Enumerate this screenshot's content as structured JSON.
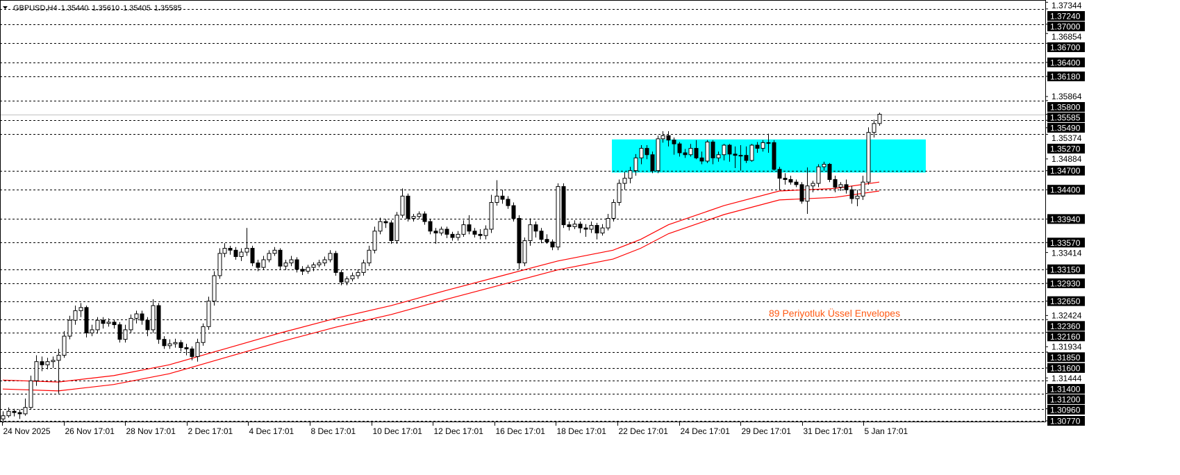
{
  "header": {
    "symbol": "GBPUSD,H4",
    "open": "1.35440",
    "high": "1.35610",
    "low": "1.35405",
    "close": "1.35585",
    "menu_icon": "triangle-down-icon"
  },
  "indicator_label": "89  Periyotluk Üssel Envelopes",
  "colors": {
    "background": "#ffffff",
    "bull_body": "#ffffff",
    "bear_body": "#000000",
    "envelope": "#ff0000",
    "zone": "#00ffff",
    "indicator_text": "#ff5a14",
    "current_price_line": "#c0c0c0",
    "level_label_bg": "#000000"
  },
  "chart_data": {
    "type": "candlestick",
    "symbol": "GBPUSD",
    "timeframe": "H4",
    "ylim": [
      1.3077,
      1.3738
    ],
    "grid": false,
    "price_axis_ticks": [
      "1.37344",
      "1.36854",
      "1.35864",
      "1.35374",
      "1.34884",
      "1.33414",
      "1.32424",
      "1.31934",
      "1.31444"
    ],
    "levels": [
      "1.37240",
      "1.37000",
      "1.36700",
      "1.36400",
      "1.36180",
      "1.35800",
      "1.35490",
      "1.35270",
      "1.34700",
      "1.34400",
      "1.33940",
      "1.33570",
      "1.33150",
      "1.32930",
      "1.32650",
      "1.32360",
      "1.32160",
      "1.31850",
      "1.31600",
      "1.31400",
      "1.31200",
      "1.30960",
      "1.30770"
    ],
    "current_price": "1.35585",
    "time_labels": [
      "24 Nov 2025",
      "26 Nov 17:01",
      "28 Nov 17:01",
      "2 Dec 17:01",
      "4 Dec 17:01",
      "8 Dec 17:01",
      "10 Dec 17:01",
      "12 Dec 17:01",
      "16 Dec 17:01",
      "18 Dec 17:01",
      "22 Dec 17:01",
      "24 Dec 17:01",
      "29 Dec 17:01",
      "31 Dec 17:01",
      "5 Jan 17:01"
    ],
    "zone": {
      "price_top": 1.3519,
      "price_bottom": 1.3467
    },
    "envelope": {
      "period": 89,
      "upper": [
        [
          0,
          1.3141
        ],
        [
          10,
          1.3138
        ],
        [
          20,
          1.3148
        ],
        [
          30,
          1.3165
        ],
        [
          40,
          1.319
        ],
        [
          50,
          1.3215
        ],
        [
          60,
          1.3238
        ],
        [
          70,
          1.3258
        ],
        [
          80,
          1.3282
        ],
        [
          90,
          1.3305
        ],
        [
          100,
          1.3328
        ],
        [
          110,
          1.3345
        ],
        [
          115,
          1.3362
        ],
        [
          120,
          1.3385
        ],
        [
          130,
          1.3415
        ],
        [
          140,
          1.3438
        ],
        [
          150,
          1.3442
        ],
        [
          158,
          1.3452
        ]
      ],
      "lower": [
        [
          0,
          1.3127
        ],
        [
          10,
          1.3124
        ],
        [
          20,
          1.3134
        ],
        [
          30,
          1.3151
        ],
        [
          40,
          1.3176
        ],
        [
          50,
          1.3201
        ],
        [
          60,
          1.3224
        ],
        [
          70,
          1.3244
        ],
        [
          80,
          1.3268
        ],
        [
          90,
          1.3291
        ],
        [
          100,
          1.3314
        ],
        [
          110,
          1.3331
        ],
        [
          115,
          1.3348
        ],
        [
          120,
          1.3371
        ],
        [
          130,
          1.3401
        ],
        [
          140,
          1.3424
        ],
        [
          150,
          1.3428
        ],
        [
          158,
          1.3438
        ]
      ]
    },
    "ohlc": [
      [
        1.308,
        1.3092,
        1.3074,
        1.3085
      ],
      [
        1.3085,
        1.3098,
        1.3082,
        1.3092
      ],
      [
        1.3092,
        1.3096,
        1.3084,
        1.309
      ],
      [
        1.309,
        1.3095,
        1.308,
        1.3088
      ],
      [
        1.3088,
        1.3112,
        1.3085,
        1.3098
      ],
      [
        1.3098,
        1.3148,
        1.3095,
        1.314
      ],
      [
        1.314,
        1.318,
        1.3132,
        1.317
      ],
      [
        1.317,
        1.3178,
        1.3155,
        1.3165
      ],
      [
        1.3165,
        1.3176,
        1.3158,
        1.317
      ],
      [
        1.317,
        1.3178,
        1.316,
        1.3172
      ],
      [
        1.3172,
        1.319,
        1.312,
        1.318
      ],
      [
        1.318,
        1.3218,
        1.3176,
        1.321
      ],
      [
        1.321,
        1.3242,
        1.3205,
        1.3235
      ],
      [
        1.3235,
        1.3258,
        1.3228,
        1.325
      ],
      [
        1.325,
        1.3262,
        1.324,
        1.3255
      ],
      [
        1.3255,
        1.3258,
        1.3208,
        1.3215
      ],
      [
        1.3215,
        1.3228,
        1.321,
        1.322
      ],
      [
        1.322,
        1.324,
        1.3214,
        1.3235
      ],
      [
        1.3235,
        1.324,
        1.3222,
        1.323
      ],
      [
        1.323,
        1.3238,
        1.3225,
        1.3232
      ],
      [
        1.3232,
        1.3236,
        1.3222,
        1.3228
      ],
      [
        1.3228,
        1.3232,
        1.32,
        1.3205
      ],
      [
        1.3205,
        1.3228,
        1.32,
        1.322
      ],
      [
        1.322,
        1.3244,
        1.3215,
        1.3238
      ],
      [
        1.3238,
        1.325,
        1.323,
        1.3245
      ],
      [
        1.3245,
        1.325,
        1.3228,
        1.3235
      ],
      [
        1.3235,
        1.324,
        1.321,
        1.322
      ],
      [
        1.322,
        1.3268,
        1.3215,
        1.3258
      ],
      [
        1.3258,
        1.3262,
        1.3198,
        1.3205
      ],
      [
        1.3205,
        1.321,
        1.319,
        1.3195
      ],
      [
        1.3195,
        1.3205,
        1.319,
        1.3198
      ],
      [
        1.3198,
        1.3206,
        1.3192,
        1.32
      ],
      [
        1.32,
        1.3204,
        1.3186,
        1.3192
      ],
      [
        1.3192,
        1.3198,
        1.318,
        1.319
      ],
      [
        1.319,
        1.3194,
        1.3172,
        1.3178
      ],
      [
        1.3178,
        1.3206,
        1.317,
        1.32
      ],
      [
        1.32,
        1.323,
        1.3195,
        1.3225
      ],
      [
        1.3225,
        1.3272,
        1.322,
        1.3265
      ],
      [
        1.3265,
        1.3312,
        1.3258,
        1.3305
      ],
      [
        1.3305,
        1.3348,
        1.33,
        1.334
      ],
      [
        1.334,
        1.3356,
        1.3334,
        1.3348
      ],
      [
        1.3348,
        1.3352,
        1.3338,
        1.3345
      ],
      [
        1.3345,
        1.335,
        1.333,
        1.3335
      ],
      [
        1.3335,
        1.3348,
        1.3328,
        1.3342
      ],
      [
        1.3342,
        1.338,
        1.3336,
        1.3348
      ],
      [
        1.3348,
        1.3352,
        1.332,
        1.3325
      ],
      [
        1.3325,
        1.333,
        1.3312,
        1.3318
      ],
      [
        1.3318,
        1.3336,
        1.3314,
        1.333
      ],
      [
        1.333,
        1.3345,
        1.3326,
        1.334
      ],
      [
        1.334,
        1.335,
        1.3336,
        1.3345
      ],
      [
        1.3345,
        1.3348,
        1.3315,
        1.332
      ],
      [
        1.332,
        1.333,
        1.3314,
        1.3325
      ],
      [
        1.3325,
        1.3336,
        1.332,
        1.333
      ],
      [
        1.333,
        1.3334,
        1.331,
        1.3315
      ],
      [
        1.3315,
        1.332,
        1.3306,
        1.3312
      ],
      [
        1.3312,
        1.3322,
        1.3308,
        1.3318
      ],
      [
        1.3318,
        1.3326,
        1.3312,
        1.3322
      ],
      [
        1.3322,
        1.333,
        1.3318,
        1.3325
      ],
      [
        1.3325,
        1.3335,
        1.332,
        1.333
      ],
      [
        1.333,
        1.3345,
        1.3326,
        1.334
      ],
      [
        1.334,
        1.3344,
        1.3305,
        1.331
      ],
      [
        1.331,
        1.3314,
        1.329,
        1.3295
      ],
      [
        1.3295,
        1.3304,
        1.329,
        1.33
      ],
      [
        1.33,
        1.331,
        1.3296,
        1.3305
      ],
      [
        1.3305,
        1.3315,
        1.33,
        1.331
      ],
      [
        1.331,
        1.333,
        1.3305,
        1.3325
      ],
      [
        1.3325,
        1.3352,
        1.332,
        1.3345
      ],
      [
        1.3345,
        1.3382,
        1.334,
        1.3375
      ],
      [
        1.3375,
        1.3396,
        1.337,
        1.339
      ],
      [
        1.339,
        1.3394,
        1.338,
        1.3388
      ],
      [
        1.3388,
        1.3392,
        1.3355,
        1.336
      ],
      [
        1.336,
        1.3405,
        1.3355,
        1.34
      ],
      [
        1.34,
        1.3442,
        1.3396,
        1.343
      ],
      [
        1.343,
        1.3434,
        1.339,
        1.3395
      ],
      [
        1.3395,
        1.3402,
        1.339,
        1.3398
      ],
      [
        1.3398,
        1.3406,
        1.3394,
        1.3402
      ],
      [
        1.3402,
        1.3406,
        1.3385,
        1.339
      ],
      [
        1.339,
        1.3394,
        1.337,
        1.3375
      ],
      [
        1.3375,
        1.338,
        1.3355,
        1.3372
      ],
      [
        1.3372,
        1.3382,
        1.3368,
        1.3378
      ],
      [
        1.3378,
        1.3382,
        1.3364,
        1.337
      ],
      [
        1.337,
        1.3374,
        1.336,
        1.3365
      ],
      [
        1.3365,
        1.3375,
        1.336,
        1.337
      ],
      [
        1.337,
        1.3392,
        1.3366,
        1.3385
      ],
      [
        1.3385,
        1.34,
        1.337,
        1.3375
      ],
      [
        1.3375,
        1.338,
        1.3365,
        1.337
      ],
      [
        1.337,
        1.3378,
        1.3362,
        1.3368
      ],
      [
        1.3368,
        1.3384,
        1.3362,
        1.3378
      ],
      [
        1.3378,
        1.3432,
        1.3372,
        1.342
      ],
      [
        1.342,
        1.3455,
        1.3415,
        1.343
      ],
      [
        1.343,
        1.344,
        1.3418,
        1.3425
      ],
      [
        1.3425,
        1.343,
        1.341,
        1.3415
      ],
      [
        1.3415,
        1.342,
        1.339,
        1.3395
      ],
      [
        1.3395,
        1.34,
        1.3315,
        1.3325
      ],
      [
        1.3325,
        1.3365,
        1.332,
        1.336
      ],
      [
        1.336,
        1.3395,
        1.3352,
        1.3385
      ],
      [
        1.3385,
        1.339,
        1.3365,
        1.3375
      ],
      [
        1.3375,
        1.338,
        1.3356,
        1.3362
      ],
      [
        1.3362,
        1.337,
        1.3355,
        1.3358
      ],
      [
        1.3358,
        1.3362,
        1.3345,
        1.335
      ],
      [
        1.335,
        1.345,
        1.3345,
        1.3445
      ],
      [
        1.3445,
        1.345,
        1.338,
        1.3385
      ],
      [
        1.3385,
        1.339,
        1.3376,
        1.3382
      ],
      [
        1.3382,
        1.3392,
        1.3378,
        1.3386
      ],
      [
        1.3386,
        1.339,
        1.3372,
        1.338
      ],
      [
        1.338,
        1.3386,
        1.3366,
        1.3378
      ],
      [
        1.3378,
        1.339,
        1.3372,
        1.3384
      ],
      [
        1.3384,
        1.3388,
        1.3362,
        1.3372
      ],
      [
        1.3372,
        1.3386,
        1.3368,
        1.338
      ],
      [
        1.338,
        1.3402,
        1.3376,
        1.3395
      ],
      [
        1.3395,
        1.3425,
        1.339,
        1.342
      ],
      [
        1.342,
        1.3456,
        1.3415,
        1.345
      ],
      [
        1.345,
        1.3468,
        1.344,
        1.3458
      ],
      [
        1.3458,
        1.3476,
        1.345,
        1.347
      ],
      [
        1.347,
        1.3496,
        1.3462,
        1.349
      ],
      [
        1.349,
        1.351,
        1.348,
        1.3505
      ],
      [
        1.3505,
        1.351,
        1.3488,
        1.3495
      ],
      [
        1.3495,
        1.35,
        1.3466,
        1.347
      ],
      [
        1.347,
        1.3525,
        1.3466,
        1.352
      ],
      [
        1.352,
        1.3532,
        1.3514,
        1.3525
      ],
      [
        1.3525,
        1.3532,
        1.3508,
        1.3518
      ],
      [
        1.3518,
        1.3522,
        1.3495,
        1.3512
      ],
      [
        1.3512,
        1.3515,
        1.3492,
        1.3498
      ],
      [
        1.3498,
        1.3504,
        1.349,
        1.3495
      ],
      [
        1.3495,
        1.3512,
        1.3492,
        1.3505
      ],
      [
        1.3505,
        1.3518,
        1.3488,
        1.349
      ],
      [
        1.349,
        1.35,
        1.348,
        1.3485
      ],
      [
        1.3485,
        1.3518,
        1.3482,
        1.3515
      ],
      [
        1.3515,
        1.3518,
        1.348,
        1.349
      ],
      [
        1.349,
        1.35,
        1.3484,
        1.3495
      ],
      [
        1.3495,
        1.3512,
        1.3486,
        1.351
      ],
      [
        1.351,
        1.3512,
        1.3484,
        1.3496
      ],
      [
        1.3496,
        1.3508,
        1.3474,
        1.3494
      ],
      [
        1.3494,
        1.351,
        1.347,
        1.3494
      ],
      [
        1.3494,
        1.3508,
        1.3482,
        1.3486
      ],
      [
        1.3486,
        1.3512,
        1.3484,
        1.351
      ],
      [
        1.351,
        1.3515,
        1.3498,
        1.3505
      ],
      [
        1.3505,
        1.3518,
        1.35,
        1.3514
      ],
      [
        1.3514,
        1.3528,
        1.3498,
        1.3514
      ],
      [
        1.3514,
        1.3518,
        1.347,
        1.3472
      ],
      [
        1.3472,
        1.3476,
        1.344,
        1.3458
      ],
      [
        1.3458,
        1.3466,
        1.3448,
        1.3456
      ],
      [
        1.3456,
        1.3462,
        1.3448,
        1.3452
      ],
      [
        1.3452,
        1.3456,
        1.3444,
        1.3448
      ],
      [
        1.3448,
        1.3452,
        1.3418,
        1.3422
      ],
      [
        1.3422,
        1.3475,
        1.3402,
        1.3446
      ],
      [
        1.3446,
        1.3454,
        1.3436,
        1.345
      ],
      [
        1.345,
        1.348,
        1.3444,
        1.3476
      ],
      [
        1.3476,
        1.3484,
        1.347,
        1.348
      ],
      [
        1.348,
        1.3482,
        1.3452,
        1.3456
      ],
      [
        1.3456,
        1.3462,
        1.3436,
        1.3444
      ],
      [
        1.3444,
        1.3452,
        1.3438,
        1.3448
      ],
      [
        1.3448,
        1.3456,
        1.3434,
        1.344
      ],
      [
        1.344,
        1.3446,
        1.3418,
        1.3426
      ],
      [
        1.3426,
        1.344,
        1.3414,
        1.343
      ],
      [
        1.343,
        1.3462,
        1.3424,
        1.3452
      ],
      [
        1.3452,
        1.3538,
        1.3448,
        1.353
      ],
      [
        1.353,
        1.355,
        1.3522,
        1.3544
      ],
      [
        1.3544,
        1.3561,
        1.35405,
        1.35585
      ]
    ]
  }
}
